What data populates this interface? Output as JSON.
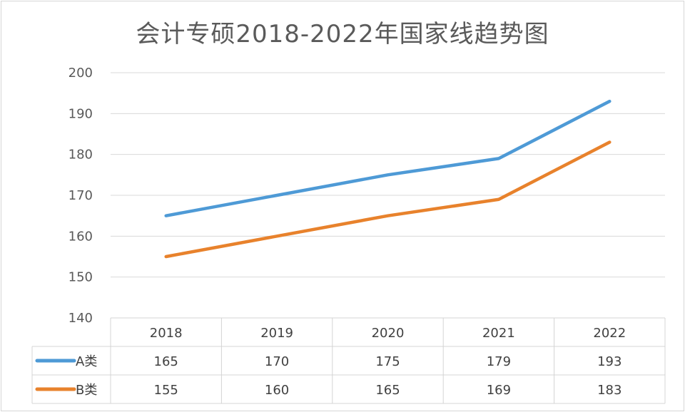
{
  "chart_data": {
    "type": "line",
    "title": "会计专硕2018-2022年国家线趋势图",
    "categories": [
      "2018",
      "2019",
      "2020",
      "2021",
      "2022"
    ],
    "series": [
      {
        "name": "A类",
        "color": "#4e9ad6",
        "values": [
          165,
          170,
          175,
          179,
          193
        ]
      },
      {
        "name": "B类",
        "color": "#e8822c",
        "values": [
          155,
          160,
          165,
          169,
          183
        ]
      }
    ],
    "ylim": [
      140,
      200
    ],
    "yticks": [
      140,
      150,
      160,
      170,
      180,
      190,
      200
    ],
    "grid": true,
    "data_table": true,
    "legend": "in data table"
  }
}
